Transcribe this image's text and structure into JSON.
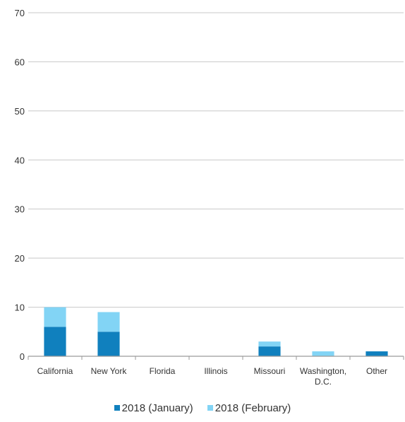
{
  "chart_data": {
    "type": "bar",
    "stacked": true,
    "title": "",
    "xlabel": "",
    "ylabel": "",
    "ylim": [
      0,
      70
    ],
    "yticks": [
      0,
      10,
      20,
      30,
      40,
      50,
      60,
      70
    ],
    "grid": true,
    "legend_position": "bottom",
    "categories": [
      [
        "California"
      ],
      [
        "New York"
      ],
      [
        "Florida"
      ],
      [
        "Illinois"
      ],
      [
        "Missouri"
      ],
      [
        "Washington,",
        "D.C."
      ],
      [
        "Other"
      ]
    ],
    "series": [
      {
        "name": "2018 (January)",
        "color": "#1080be",
        "values": [
          6,
          5,
          0,
          0,
          2,
          0,
          1
        ]
      },
      {
        "name": "2018 (February)",
        "color": "#82d4f5",
        "values": [
          4,
          4,
          0,
          0,
          1,
          1,
          0
        ]
      }
    ],
    "colors": {
      "grid": "#c8c8c8",
      "axis": "#9a9a9a",
      "text": "#333333"
    }
  }
}
